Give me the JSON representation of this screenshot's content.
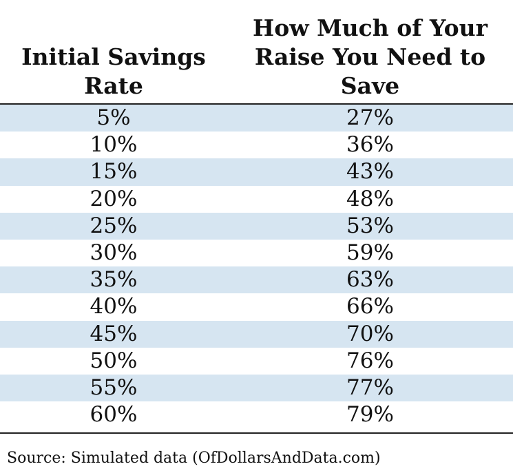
{
  "chart_data": {
    "type": "table",
    "columns": [
      "Initial Savings Rate",
      "How Much of Your Raise You Need to Save"
    ],
    "header_lines": {
      "col1": [
        "Initial Savings",
        "Rate"
      ],
      "col2": [
        "How Much of Your",
        "Raise You Need to",
        "Save"
      ]
    },
    "rows": [
      [
        "5%",
        "27%"
      ],
      [
        "10%",
        "36%"
      ],
      [
        "15%",
        "43%"
      ],
      [
        "20%",
        "48%"
      ],
      [
        "25%",
        "53%"
      ],
      [
        "30%",
        "59%"
      ],
      [
        "35%",
        "63%"
      ],
      [
        "40%",
        "66%"
      ],
      [
        "45%",
        "70%"
      ],
      [
        "50%",
        "76%"
      ],
      [
        "55%",
        "77%"
      ],
      [
        "60%",
        "79%"
      ]
    ],
    "source": "Source: Simulated data (OfDollarsAndData.com)",
    "colors": {
      "stripe": "#d6e5f1",
      "rule": "#222222",
      "text": "#111111"
    }
  }
}
